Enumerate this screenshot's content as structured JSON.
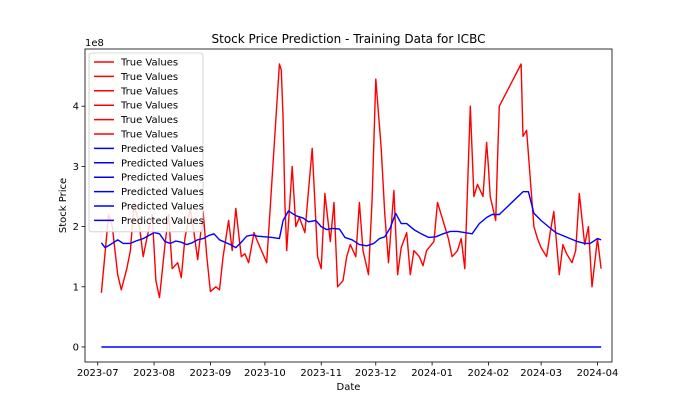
{
  "chart_data": {
    "type": "line",
    "title": "Stock Price Prediction - Training Data for ICBC",
    "xlabel": "Date",
    "ylabel": "Stock Price",
    "y_multiplier": "1e8",
    "ylim": [
      -25000000.0,
      495000000.0
    ],
    "xlim": [
      "2023-06-24",
      "2024-04-09"
    ],
    "y_ticks": [
      0,
      100000000,
      200000000,
      300000000,
      400000000
    ],
    "y_tick_labels": [
      "0",
      "1",
      "2",
      "3",
      "4"
    ],
    "x_ticks": [
      "2023-07-01",
      "2023-08-01",
      "2023-09-01",
      "2023-10-01",
      "2023-11-01",
      "2023-12-01",
      "2024-01-01",
      "2024-02-01",
      "2024-03-01",
      "2024-04-01"
    ],
    "x_tick_labels": [
      "2023-07",
      "2023-08",
      "2023-09",
      "2023-10",
      "2023-11",
      "2023-12",
      "2024-01",
      "2024-02",
      "2024-03",
      "2024-04"
    ],
    "grid": false,
    "legend_position": "top-left",
    "colors": {
      "true": "#ff0000",
      "pred": "#0000ff"
    },
    "legend": [
      {
        "label": "True Values",
        "color": "#ff0000"
      },
      {
        "label": "True Values",
        "color": "#ff0000"
      },
      {
        "label": "True Values",
        "color": "#ff0000"
      },
      {
        "label": "True Values",
        "color": "#ff0000"
      },
      {
        "label": "True Values",
        "color": "#ff0000"
      },
      {
        "label": "True Values",
        "color": "#ff0000"
      },
      {
        "label": "Predicted Values",
        "color": "#0000ff"
      },
      {
        "label": "Predicted Values",
        "color": "#0000ff"
      },
      {
        "label": "Predicted Values",
        "color": "#0000ff"
      },
      {
        "label": "Predicted Values",
        "color": "#0000ff"
      },
      {
        "label": "Predicted Values",
        "color": "#0000ff"
      },
      {
        "label": "Predicted Values",
        "color": "#0000ff"
      }
    ],
    "series": [
      {
        "color": "#ff0000",
        "x": [
          "2023-07-03",
          "2023-07-07",
          "2023-07-09",
          "2023-07-12",
          "2023-07-14",
          "2023-07-17",
          "2023-07-19",
          "2023-07-21",
          "2023-07-24",
          "2023-07-26",
          "2023-07-28",
          "2023-07-31",
          "2023-08-02",
          "2023-08-04",
          "2023-08-07",
          "2023-08-09",
          "2023-08-11",
          "2023-08-14",
          "2023-08-16",
          "2023-08-18",
          "2023-08-21",
          "2023-08-23",
          "2023-08-25",
          "2023-08-28",
          "2023-08-30",
          "2023-09-01",
          "2023-09-04",
          "2023-09-06",
          "2023-09-08",
          "2023-09-11",
          "2023-09-13",
          "2023-09-15",
          "2023-09-18",
          "2023-09-20",
          "2023-09-22",
          "2023-09-25",
          "2023-09-27",
          "2023-10-02",
          "2023-10-09",
          "2023-10-10",
          "2023-10-11",
          "2023-10-12",
          "2023-10-13",
          "2023-10-16",
          "2023-10-18",
          "2023-10-20",
          "2023-10-23",
          "2023-10-25",
          "2023-10-27",
          "2023-10-30",
          "2023-11-01",
          "2023-11-03",
          "2023-11-06",
          "2023-11-08",
          "2023-11-10",
          "2023-11-13",
          "2023-11-15",
          "2023-11-17",
          "2023-11-20",
          "2023-11-22",
          "2023-11-24",
          "2023-11-27",
          "2023-11-29",
          "2023-12-01",
          "2023-12-04",
          "2023-12-06",
          "2023-12-07",
          "2023-12-08",
          "2023-12-11",
          "2023-12-13",
          "2023-12-15",
          "2023-12-18",
          "2023-12-20",
          "2023-12-22",
          "2023-12-25",
          "2023-12-27",
          "2023-12-29",
          "2024-01-02",
          "2024-01-04",
          "2024-01-08",
          "2024-01-10",
          "2024-01-12",
          "2024-01-15",
          "2024-01-17",
          "2024-01-19",
          "2024-01-22",
          "2024-01-24",
          "2024-01-26",
          "2024-01-29",
          "2024-01-31",
          "2024-02-01",
          "2024-02-02",
          "2024-02-05",
          "2024-02-06",
          "2024-02-07",
          "2024-02-19",
          "2024-02-20",
          "2024-02-22",
          "2024-02-26",
          "2024-02-28",
          "2024-03-01",
          "2024-03-04",
          "2024-03-06",
          "2024-03-08",
          "2024-03-11",
          "2024-03-13",
          "2024-03-15",
          "2024-03-18",
          "2024-03-20",
          "2024-03-22",
          "2024-03-25",
          "2024-03-27",
          "2024-03-29",
          "2024-04-01",
          "2024-04-03"
        ],
        "y": [
          90000000,
          220000000,
          200000000,
          120000000,
          95000000,
          130000000,
          160000000,
          240000000,
          200000000,
          150000000,
          180000000,
          220000000,
          110000000,
          82000000,
          170000000,
          220000000,
          130000000,
          140000000,
          115000000,
          180000000,
          230000000,
          190000000,
          145000000,
          225000000,
          150000000,
          92000000,
          100000000,
          95000000,
          150000000,
          210000000,
          160000000,
          230000000,
          150000000,
          155000000,
          140000000,
          190000000,
          175000000,
          140000000,
          470000000,
          460000000,
          380000000,
          240000000,
          160000000,
          300000000,
          200000000,
          215000000,
          190000000,
          260000000,
          330000000,
          150000000,
          130000000,
          255000000,
          175000000,
          240000000,
          100000000,
          110000000,
          150000000,
          170000000,
          150000000,
          240000000,
          160000000,
          120000000,
          245000000,
          445000000,
          330000000,
          220000000,
          180000000,
          140000000,
          260000000,
          120000000,
          165000000,
          190000000,
          120000000,
          160000000,
          150000000,
          135000000,
          160000000,
          175000000,
          240000000,
          200000000,
          180000000,
          150000000,
          160000000,
          180000000,
          130000000,
          400000000,
          250000000,
          270000000,
          250000000,
          340000000,
          300000000,
          250000000,
          210000000,
          310000000,
          400000000,
          470000000,
          350000000,
          360000000,
          200000000,
          180000000,
          165000000,
          150000000,
          190000000,
          225000000,
          120000000,
          170000000,
          155000000,
          140000000,
          160000000,
          255000000,
          170000000,
          200000000,
          100000000,
          180000000,
          130000000
        ],
        "name_note": ""
      },
      {
        "color": "#0000ff",
        "x": [
          "2023-07-03",
          "2023-07-05",
          "2023-07-08",
          "2023-07-12",
          "2023-07-15",
          "2023-07-19",
          "2023-07-22",
          "2023-07-26",
          "2023-07-29",
          "2023-08-01",
          "2023-08-04",
          "2023-08-07",
          "2023-08-10",
          "2023-08-13",
          "2023-08-16",
          "2023-08-19",
          "2023-08-22",
          "2023-08-25",
          "2023-08-28",
          "2023-08-31",
          "2023-09-03",
          "2023-09-06",
          "2023-09-09",
          "2023-09-12",
          "2023-09-15",
          "2023-09-18",
          "2023-09-21",
          "2023-09-24",
          "2023-09-27",
          "2023-10-01",
          "2023-10-05",
          "2023-10-09",
          "2023-10-11",
          "2023-10-14",
          "2023-10-18",
          "2023-10-22",
          "2023-10-25",
          "2023-10-29",
          "2023-11-01",
          "2023-11-04",
          "2023-11-07",
          "2023-11-11",
          "2023-11-14",
          "2023-11-18",
          "2023-11-22",
          "2023-11-26",
          "2023-11-30",
          "2023-12-03",
          "2023-12-06",
          "2023-12-09",
          "2023-12-12",
          "2023-12-15",
          "2023-12-18",
          "2023-12-22",
          "2023-12-26",
          "2023-12-30",
          "2024-01-03",
          "2024-01-07",
          "2024-01-11",
          "2024-01-15",
          "2024-01-19",
          "2024-01-23",
          "2024-01-27",
          "2024-01-31",
          "2024-02-03",
          "2024-02-07",
          "2024-02-20",
          "2024-02-23",
          "2024-02-26",
          "2024-03-01",
          "2024-03-05",
          "2024-03-09",
          "2024-03-13",
          "2024-03-17",
          "2024-03-21",
          "2024-03-25",
          "2024-03-28",
          "2024-04-01",
          "2024-04-03"
        ],
        "y": [
          173000000,
          165000000,
          170000000,
          178000000,
          172000000,
          172000000,
          176000000,
          180000000,
          185000000,
          190000000,
          188000000,
          175000000,
          172000000,
          176000000,
          174000000,
          170000000,
          173000000,
          178000000,
          180000000,
          185000000,
          188000000,
          178000000,
          174000000,
          170000000,
          165000000,
          174000000,
          184000000,
          186000000,
          184000000,
          183000000,
          182000000,
          180000000,
          210000000,
          226000000,
          218000000,
          214000000,
          208000000,
          210000000,
          200000000,
          195000000,
          197000000,
          196000000,
          182000000,
          178000000,
          170000000,
          168000000,
          172000000,
          180000000,
          183000000,
          198000000,
          222000000,
          205000000,
          205000000,
          195000000,
          188000000,
          182000000,
          183000000,
          188000000,
          192000000,
          192000000,
          190000000,
          188000000,
          205000000,
          215000000,
          220000000,
          220000000,
          258000000,
          258000000,
          222000000,
          210000000,
          200000000,
          190000000,
          185000000,
          180000000,
          175000000,
          172000000,
          172000000,
          180000000,
          178000000
        ]
      },
      {
        "color": "#0000ff",
        "x": [
          "2023-07-03",
          "2024-04-03"
        ],
        "y": [
          0,
          0
        ]
      }
    ]
  }
}
